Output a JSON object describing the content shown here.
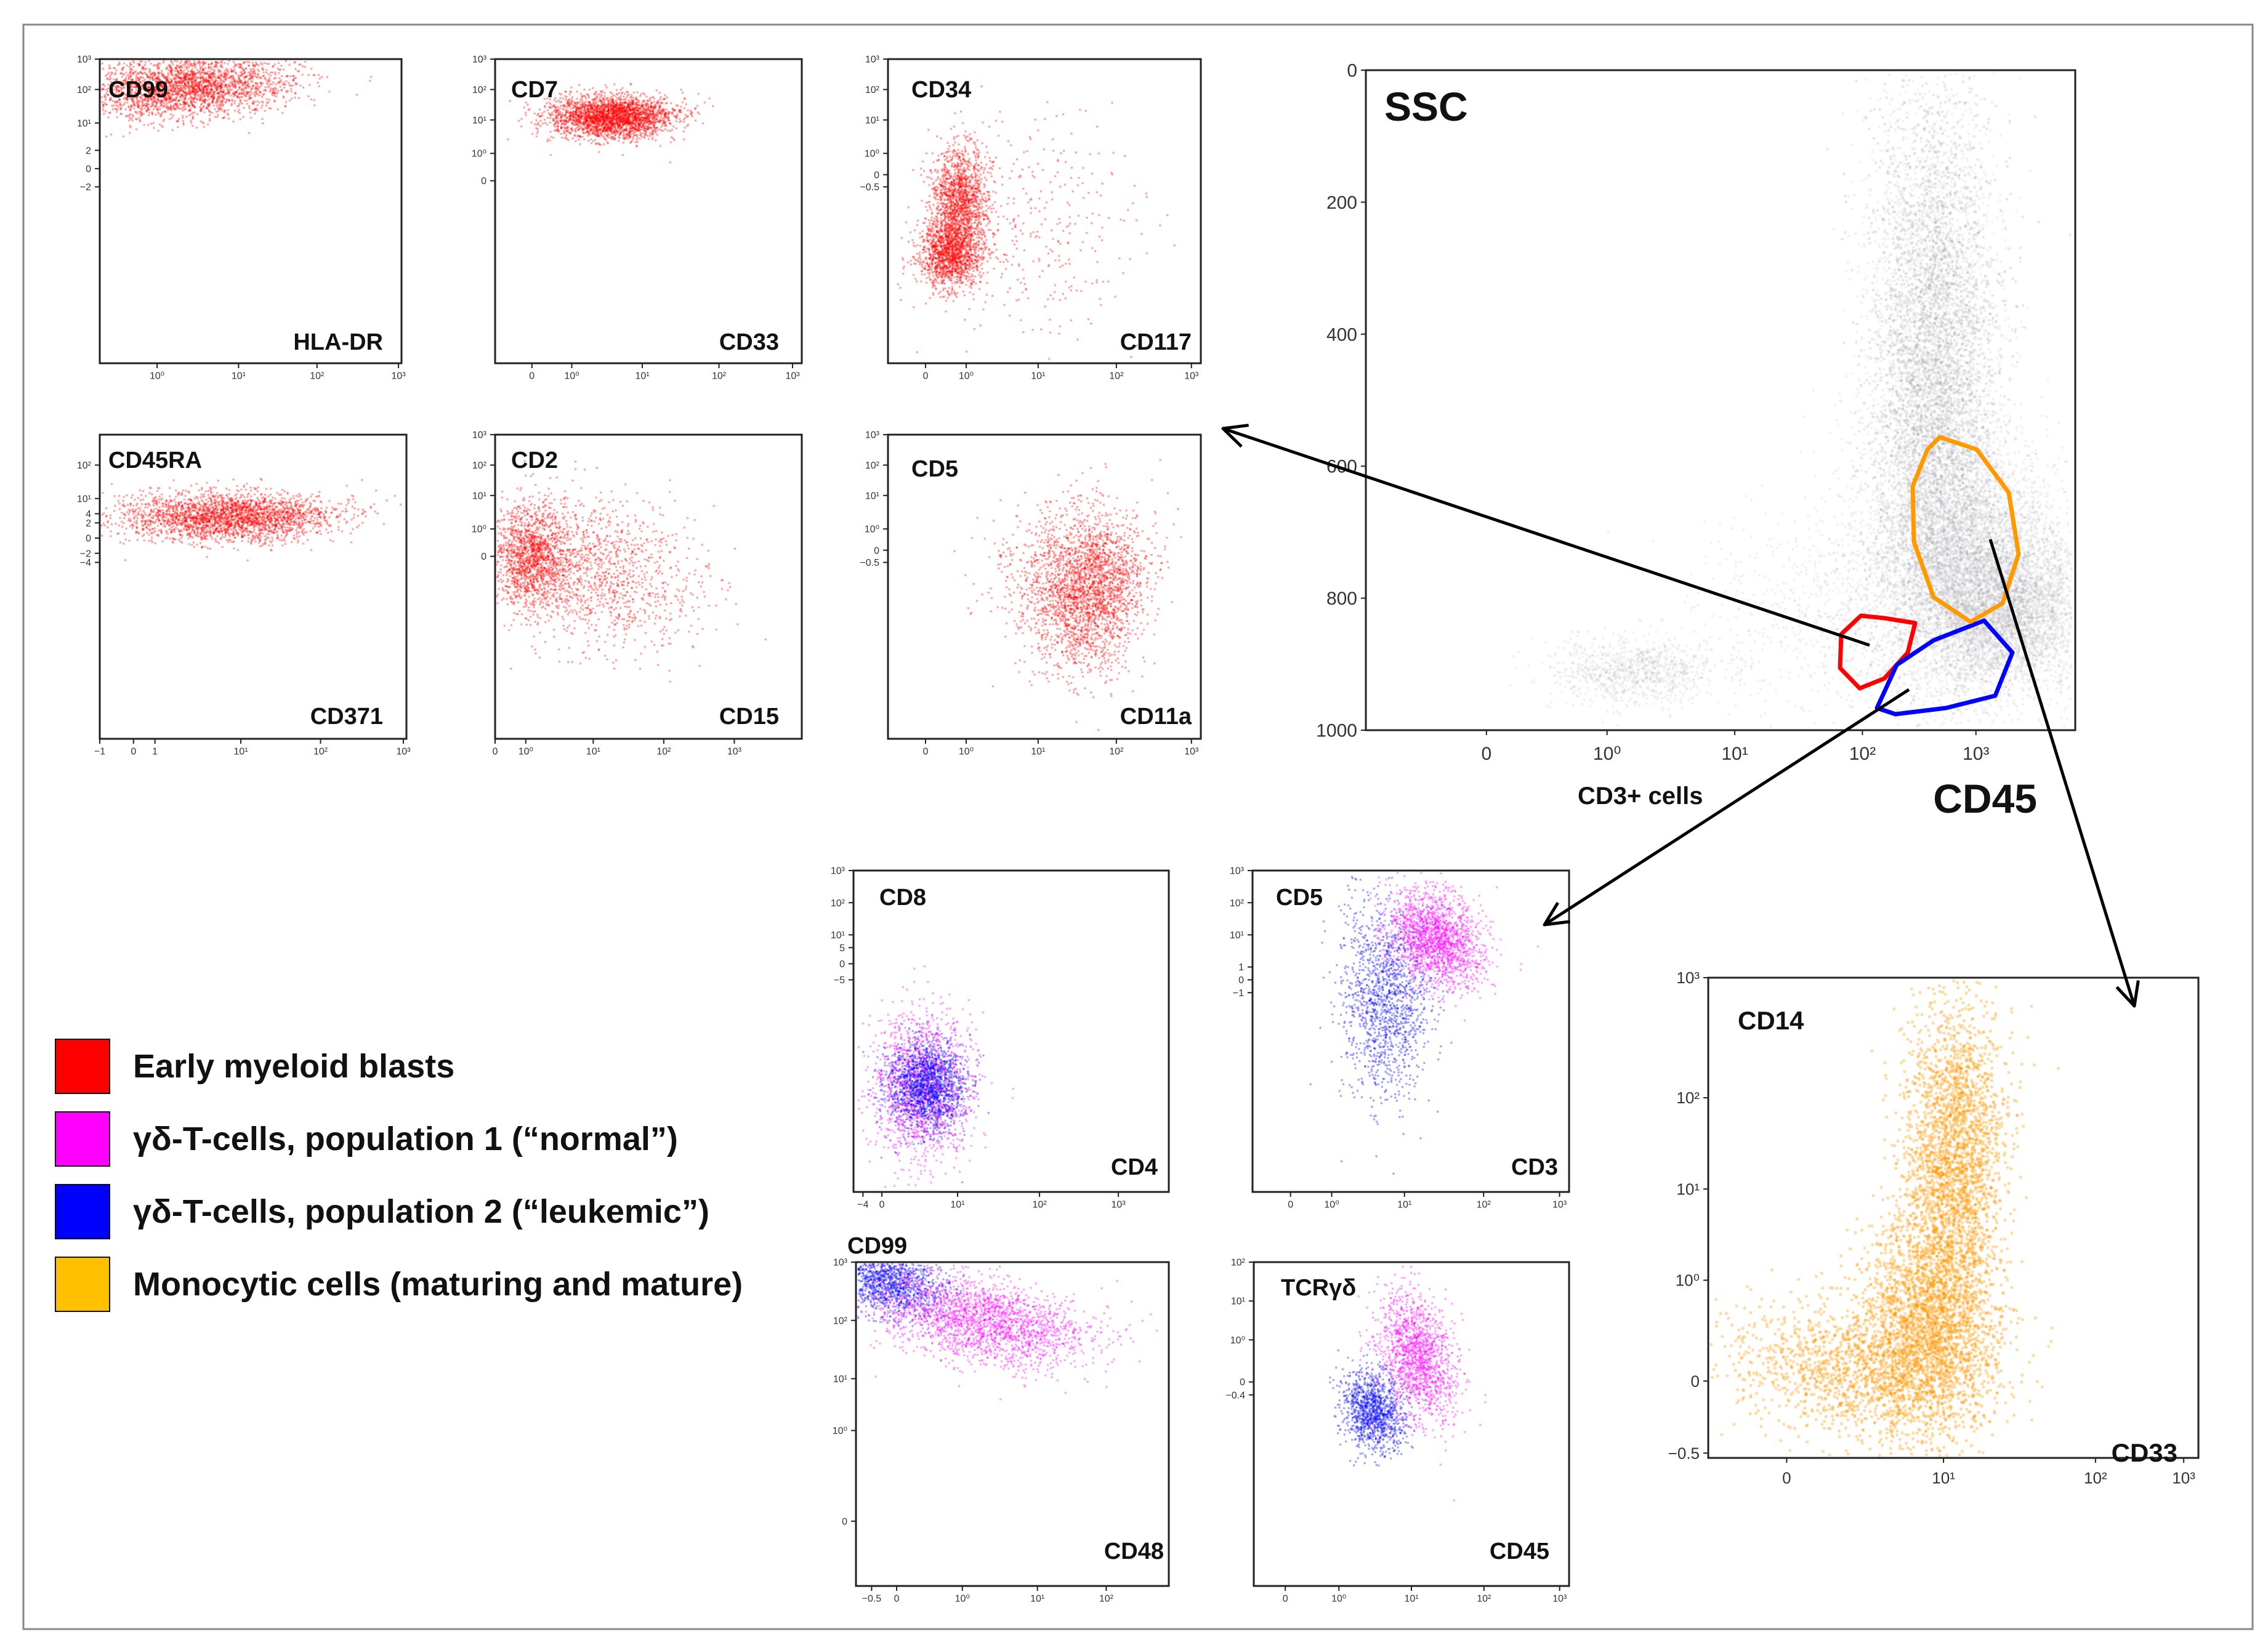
{
  "colors": {
    "red": "#ff0000",
    "magenta": "#ff00ff",
    "blue": "#0000ff",
    "orange": "#ff9900",
    "gray": "#9a9aa2",
    "legend_orange": "#ffc000"
  },
  "legend": [
    {
      "label": "Early myeloid blasts",
      "color": "#ff0000"
    },
    {
      "label": "γδ-T-cells, population 1 (“normal”)",
      "color": "#ff00ff"
    },
    {
      "label": "γδ-T-cells, population 2 (“leukemic”)",
      "color": "#0000ff"
    },
    {
      "label": "Monocytic cells (maturing and mature)",
      "color": "#ffc000"
    }
  ],
  "chart_data": [
    {
      "id": "main",
      "type": "scatter",
      "ylabel": "SSC",
      "xlabel": "CD45",
      "x_extra_label": "CD3+ cells",
      "y_ticks": [
        "0",
        "200",
        "400",
        "600",
        "800",
        "1000"
      ],
      "x_ticks": [
        "0",
        "10⁰",
        "10¹",
        "10²",
        "10³"
      ],
      "ylim": [
        0,
        1000
      ],
      "xscale": "biexponential",
      "gates": [
        {
          "name": "Early myeloid blasts",
          "color": "#ff0000"
        },
        {
          "name": "γδ-T-cells",
          "color": "#0000ff"
        },
        {
          "name": "Monocytic cells",
          "color": "#ff9900"
        }
      ]
    },
    {
      "id": "cd99-hladr",
      "type": "scatter",
      "ylabel": "CD99",
      "xlabel": "HLA-DR",
      "color": "#ff0000",
      "y_ticks": [
        "10³",
        "10²",
        "10¹",
        "2",
        "0",
        "−2"
      ],
      "x_ticks": [
        "10⁰",
        "10¹",
        "10²",
        "10³"
      ]
    },
    {
      "id": "cd7-cd33",
      "type": "scatter",
      "ylabel": "CD7",
      "xlabel": "CD33",
      "color": "#ff0000",
      "y_ticks": [
        "10³",
        "10²",
        "10¹",
        "10⁰",
        "0"
      ],
      "x_ticks": [
        "0",
        "10⁰",
        "10¹",
        "10²",
        "10³"
      ]
    },
    {
      "id": "cd34-cd117",
      "type": "scatter",
      "ylabel": "CD34",
      "xlabel": "CD117",
      "color": "#ff0000",
      "y_ticks": [
        "10³",
        "10²",
        "10¹",
        "10⁰",
        "0",
        "−0.5"
      ],
      "x_ticks": [
        "0",
        "10⁰",
        "10¹",
        "10²",
        "10³"
      ]
    },
    {
      "id": "cd45ra-cd371",
      "type": "scatter",
      "ylabel": "CD45RA",
      "xlabel": "CD371",
      "color": "#ff0000",
      "y_ticks": [
        "10²",
        "10¹",
        "4",
        "2",
        "0",
        "−2",
        "−4"
      ],
      "x_ticks": [
        "−1",
        "0",
        "1",
        "10¹",
        "10²",
        "10³"
      ]
    },
    {
      "id": "cd2-cd15",
      "type": "scatter",
      "ylabel": "CD2",
      "xlabel": "CD15",
      "color": "#ff0000",
      "y_ticks": [
        "10³",
        "10²",
        "10¹",
        "10⁰",
        "0"
      ],
      "x_ticks": [
        "0",
        "10⁰",
        "10¹",
        "10²",
        "10³"
      ]
    },
    {
      "id": "cd5-cd11a",
      "type": "scatter",
      "ylabel": "CD5",
      "xlabel": "CD11a",
      "color": "#ff0000",
      "y_ticks": [
        "10³",
        "10²",
        "10¹",
        "10⁰",
        "0",
        "−0.5"
      ],
      "x_ticks": [
        "0",
        "10⁰",
        "10¹",
        "10²",
        "10³"
      ]
    },
    {
      "id": "cd8-cd4",
      "type": "scatter",
      "ylabel": "CD8",
      "xlabel": "CD4",
      "y_ticks": [
        "10³",
        "10²",
        "10¹",
        "5",
        "0",
        "−5"
      ],
      "x_ticks": [
        "−4",
        "0",
        "10¹",
        "10²",
        "10³"
      ]
    },
    {
      "id": "cd5-cd3",
      "type": "scatter",
      "ylabel": "CD5",
      "xlabel": "CD3",
      "y_ticks": [
        "10³",
        "10²",
        "10¹",
        "1",
        "0",
        "−1"
      ],
      "x_ticks": [
        "0",
        "10⁰",
        "10¹",
        "10²",
        "10³"
      ]
    },
    {
      "id": "cd99-cd48",
      "type": "scatter",
      "ylabel": "CD99",
      "xlabel": "CD48",
      "y_ticks": [
        "10³",
        "10²",
        "10¹",
        "10⁰",
        "0"
      ],
      "x_ticks": [
        "−0.5",
        "0",
        "10⁰",
        "10¹",
        "10²"
      ]
    },
    {
      "id": "tcrgd-cd45",
      "type": "scatter",
      "ylabel": "TCRγδ",
      "xlabel": "CD45",
      "y_ticks": [
        "10²",
        "10¹",
        "10⁰",
        "0",
        "−0.4"
      ],
      "x_ticks": [
        "0",
        "10⁰",
        "10¹",
        "10²",
        "10³"
      ]
    },
    {
      "id": "cd14-cd33",
      "type": "scatter",
      "ylabel": "CD14",
      "xlabel": "CD33",
      "color": "#ff9900",
      "y_ticks": [
        "10³",
        "10²",
        "10¹",
        "10⁰",
        "0",
        "−0.5"
      ],
      "x_ticks": [
        "0",
        "10¹",
        "10²",
        "10³"
      ]
    }
  ]
}
